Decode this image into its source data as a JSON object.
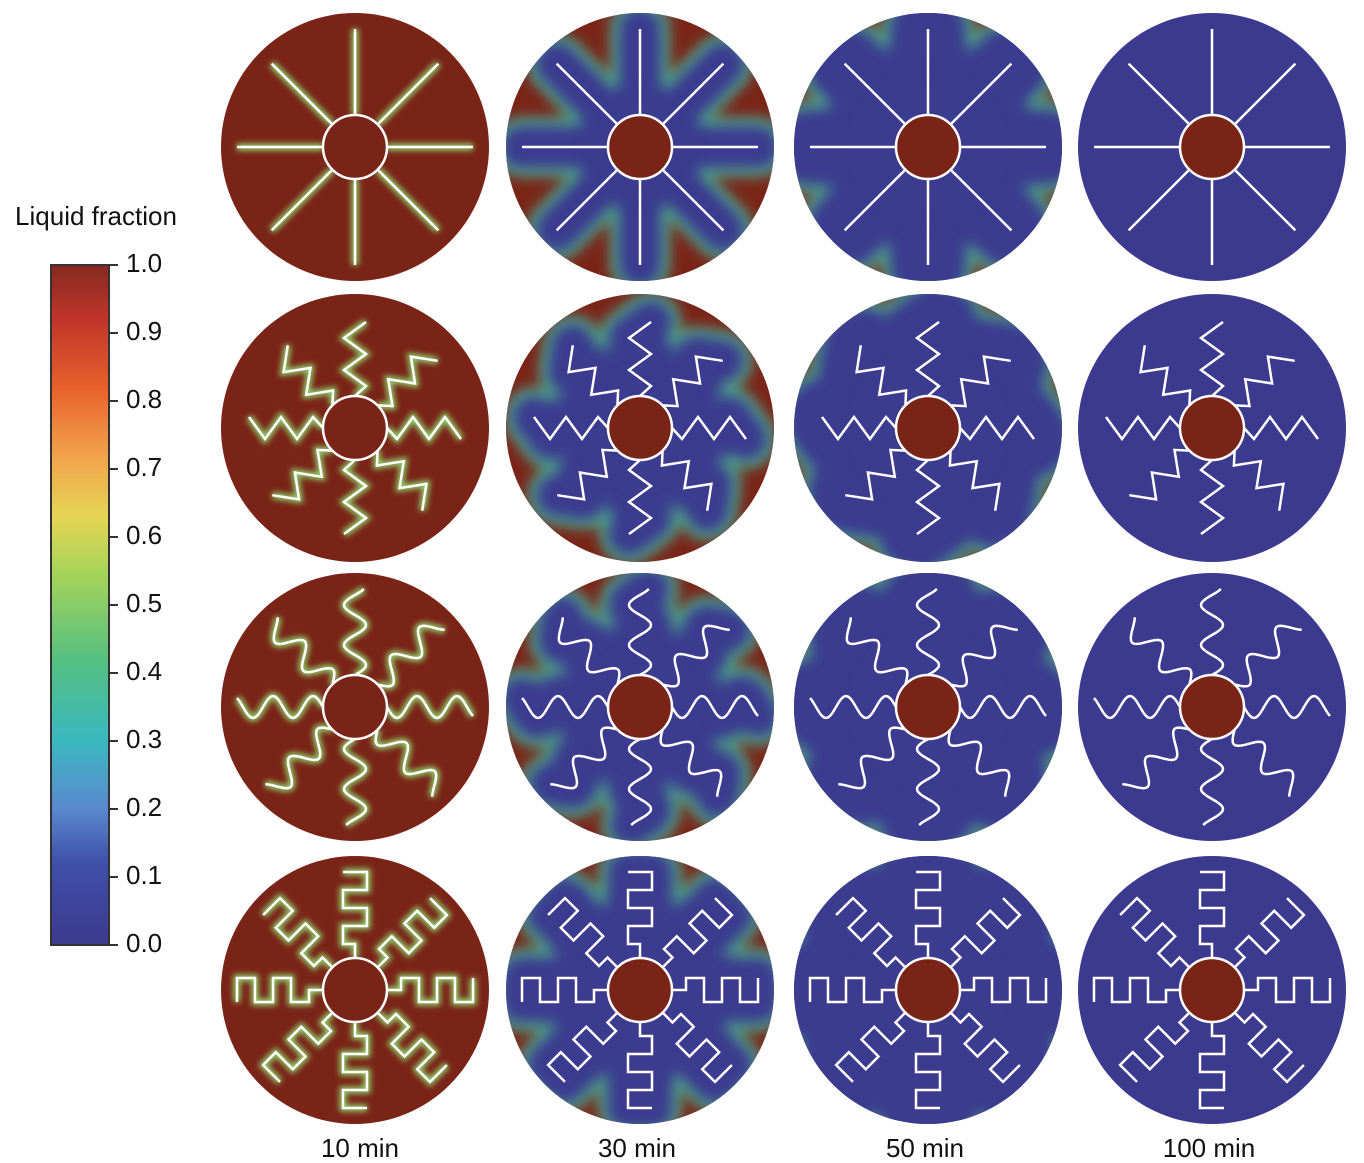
{
  "colorbar": {
    "title": "Liquid fraction",
    "ticks": [
      "0.0",
      "0.1",
      "0.2",
      "0.3",
      "0.4",
      "0.5",
      "0.6",
      "0.7",
      "0.8",
      "0.9",
      "1.0"
    ]
  },
  "columns": [
    "10 min",
    "30 min",
    "50 min",
    "100 min"
  ]
}
